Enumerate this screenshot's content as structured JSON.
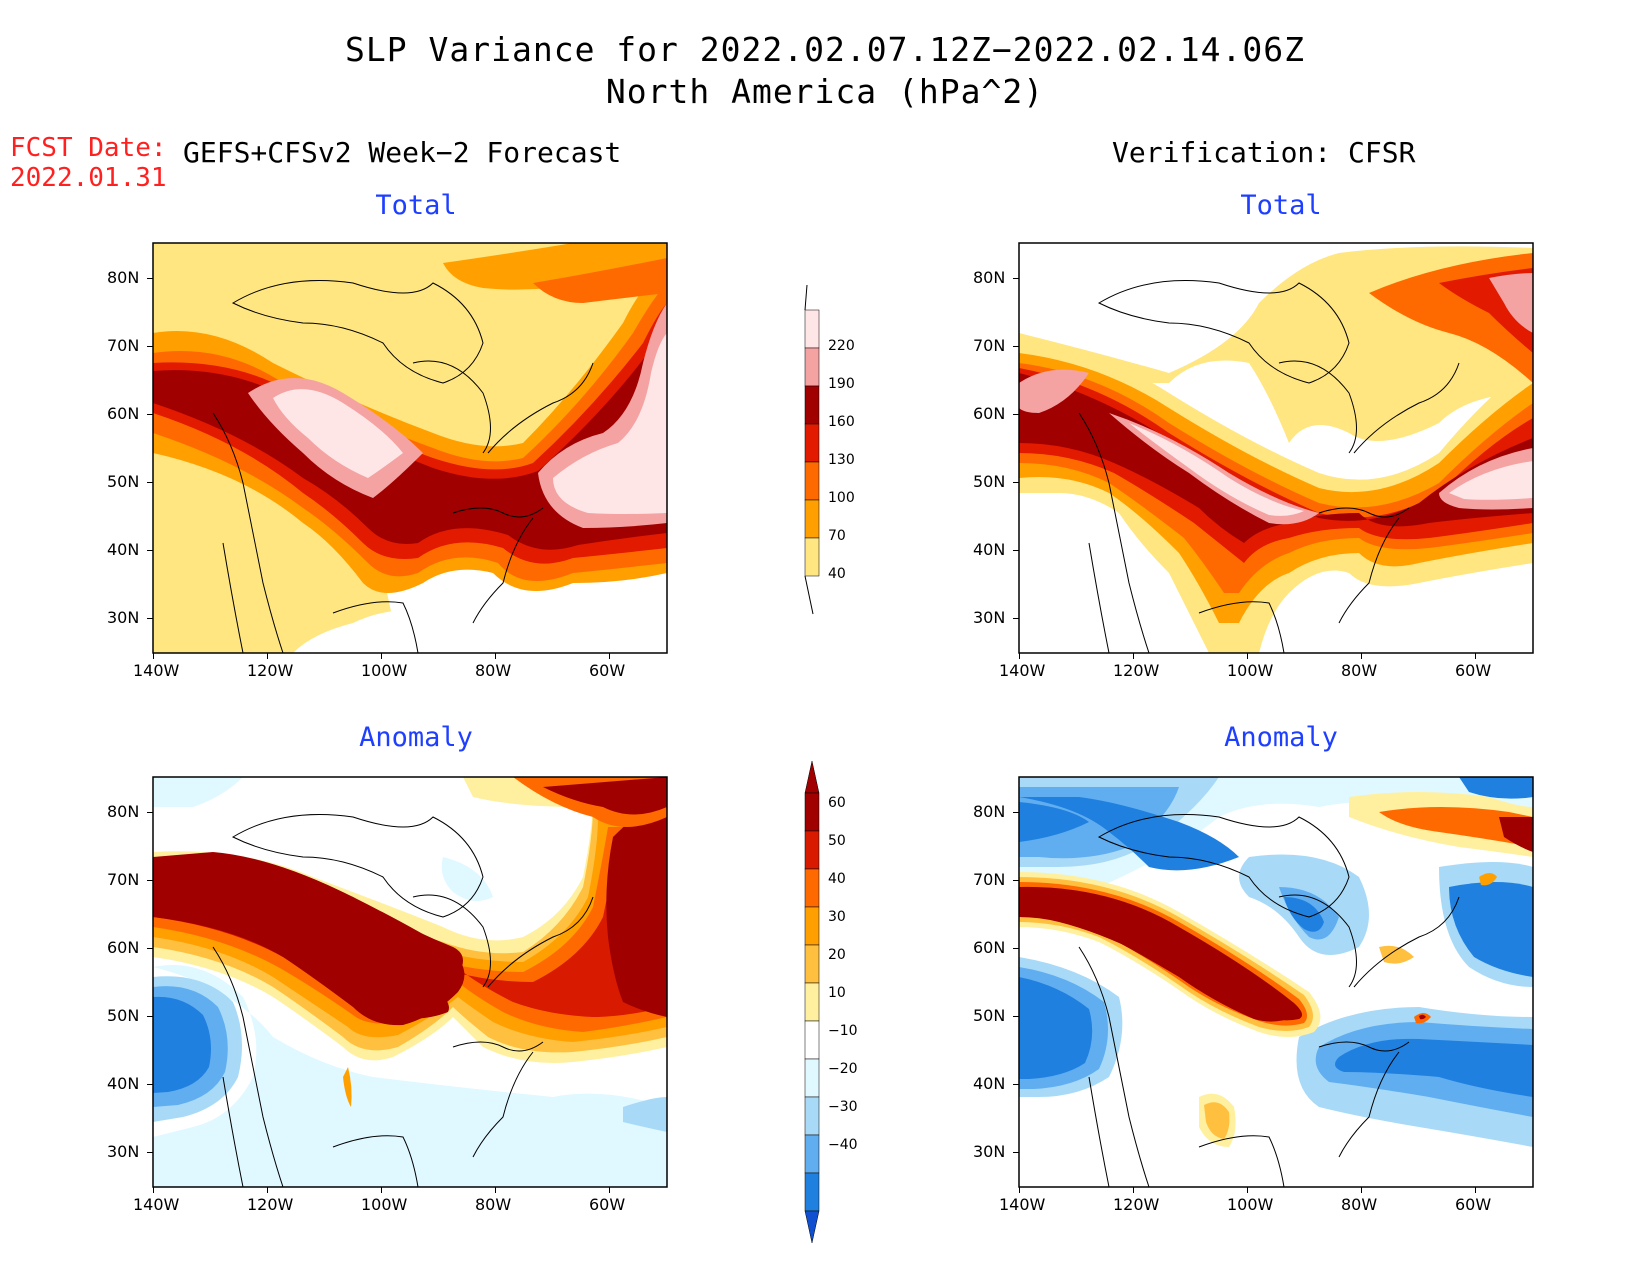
{
  "title": {
    "line1": "SLP Variance for 2022.02.07.12Z−2022.02.14.06Z",
    "line2": "North America (hPa^2)"
  },
  "forecast_date": {
    "label": "FCST Date:",
    "value": "2022.01.31"
  },
  "columns": {
    "left_header": "GEFS+CFSv2 Week−2 Forecast",
    "right_header": "Verification: CFSR"
  },
  "panels": {
    "total_label": "Total",
    "anomaly_label": "Anomaly"
  },
  "axes": {
    "lon_ticks": [
      "140W",
      "120W",
      "100W",
      "80W",
      "60W"
    ],
    "lat_ticks": [
      "80N",
      "70N",
      "60N",
      "50N",
      "40N",
      "30N"
    ]
  },
  "colorbars": {
    "total": {
      "labels": [
        "220",
        "190",
        "160",
        "130",
        "100",
        "70",
        "40"
      ],
      "colors": [
        "#ffe6e6",
        "#f4a2a2",
        "#a00000",
        "#e11a00",
        "#ff6a00",
        "#ffa000",
        "#ffe680"
      ]
    },
    "anomaly": {
      "labels": [
        "60",
        "50",
        "40",
        "30",
        "20",
        "10",
        "−10",
        "−20",
        "−30",
        "−40"
      ],
      "colors": [
        "#a00000",
        "#d81a00",
        "#ff6a00",
        "#ffa000",
        "#ffc040",
        "#fff0a0",
        "#ffffff",
        "#e0f8ff",
        "#a8daf8",
        "#60aef0",
        "#2080e0",
        "#1050d0"
      ]
    }
  },
  "palette": {
    "title_blue": "#1f3fff",
    "fcst_red": "#ff2020"
  }
}
